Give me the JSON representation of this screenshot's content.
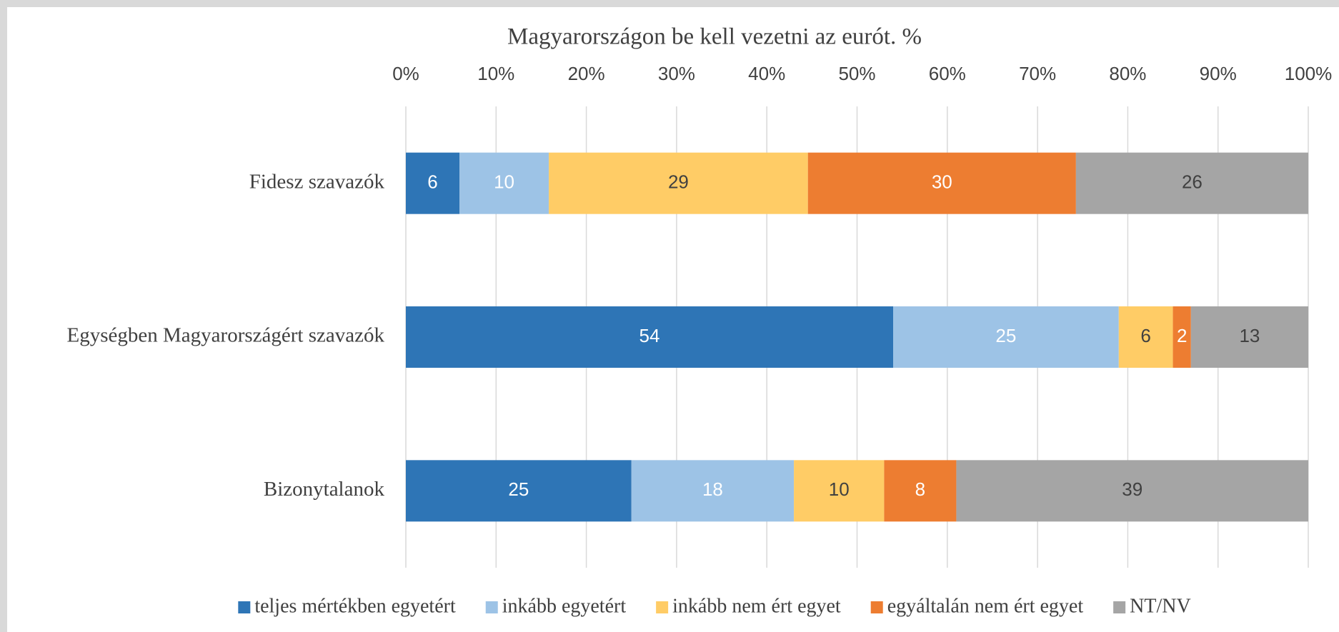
{
  "chart_data": {
    "type": "bar",
    "orientation": "horizontal",
    "stacking": "percent",
    "title": "Magyarországon be kell vezetni az eurót. %",
    "categories": [
      "Fidesz szavazók",
      "Egységben Magyarországért szavazók",
      "Bizonytalanok"
    ],
    "series": [
      {
        "name": "teljes mértékben egyetért",
        "color": "#2e75b6",
        "label_color": "#ffffff",
        "values": [
          6,
          54,
          25
        ]
      },
      {
        "name": "inkább egyetért",
        "color": "#9dc3e6",
        "label_color": "#ffffff",
        "values": [
          10,
          25,
          18
        ]
      },
      {
        "name": "inkább nem ért egyet",
        "color": "#ffcc66",
        "label_color": "#404040",
        "values": [
          29,
          6,
          10
        ]
      },
      {
        "name": "egyáltalán nem ért egyet",
        "color": "#ed7d31",
        "label_color": "#ffffff",
        "values": [
          30,
          2,
          8
        ]
      },
      {
        "name": "NT/NV",
        "color": "#a5a5a5",
        "label_color": "#404040",
        "values": [
          26,
          13,
          39
        ]
      }
    ],
    "xlim": [
      0,
      100
    ],
    "xticks": [
      {
        "value": 0,
        "label": "0%"
      },
      {
        "value": 10,
        "label": "10%"
      },
      {
        "value": 20,
        "label": "20%"
      },
      {
        "value": 30,
        "label": "30%"
      },
      {
        "value": 40,
        "label": "40%"
      },
      {
        "value": 50,
        "label": "50%"
      },
      {
        "value": 60,
        "label": "60%"
      },
      {
        "value": 70,
        "label": "70%"
      },
      {
        "value": 80,
        "label": "80%"
      },
      {
        "value": 90,
        "label": "90%"
      },
      {
        "value": 100,
        "label": "100%"
      }
    ],
    "grid": true,
    "legend": "bottom"
  }
}
